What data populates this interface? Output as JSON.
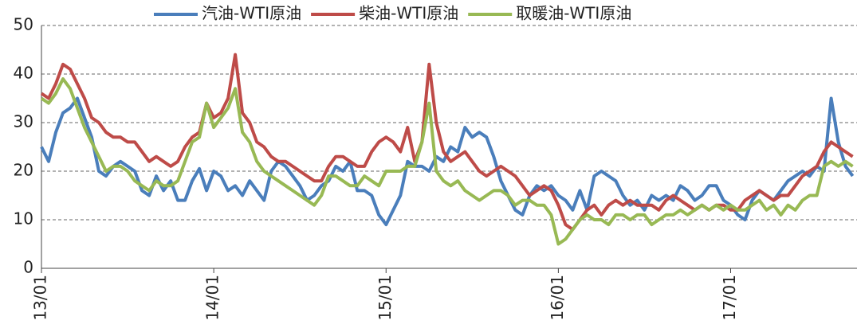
{
  "chart_data": {
    "type": "line",
    "x": [
      0,
      0.5,
      1,
      1.5,
      2,
      2.5,
      3,
      3.5,
      4,
      4.5,
      5,
      5.5,
      6,
      6.5,
      7,
      7.5,
      8,
      8.5,
      9,
      9.5,
      10,
      10.5,
      11,
      11.5,
      12,
      12.5,
      13,
      13.5,
      14,
      14.5,
      15,
      15.5,
      16,
      16.5,
      17,
      17.5,
      18,
      18.5,
      19,
      19.5,
      20,
      20.5,
      21,
      21.5,
      22,
      22.5,
      23,
      23.5,
      24,
      24.5,
      25,
      25.5,
      26,
      26.5,
      27,
      27.5,
      28,
      28.5,
      29,
      29.5,
      30,
      30.5,
      31,
      31.5,
      32,
      32.5,
      33,
      33.5,
      34,
      34.5,
      35,
      35.5,
      36,
      36.5,
      37,
      37.5,
      38,
      38.5,
      39,
      39.5,
      40,
      40.5,
      41,
      41.5,
      42,
      42.5,
      43,
      43.5,
      44,
      44.5,
      45,
      45.5,
      46,
      46.5,
      47,
      47.5,
      48,
      48.5,
      49,
      49.5,
      50,
      50.5,
      51,
      51.5,
      52,
      52.5,
      53,
      53.5,
      54,
      54.5,
      55,
      55.5,
      56,
      56.5
    ],
    "series": [
      {
        "name": "汽油-WTI原油",
        "color": "#4a7ebb",
        "values": [
          25,
          22,
          28,
          32,
          33,
          35,
          31,
          27,
          20,
          19,
          21,
          22,
          21,
          20,
          16,
          15,
          19,
          16,
          18,
          14,
          14,
          18,
          20.5,
          16,
          20,
          19,
          16,
          17,
          15,
          18,
          16,
          14,
          20,
          22,
          21,
          19,
          17,
          14,
          15,
          17,
          18,
          21,
          20,
          22,
          16,
          16,
          15,
          11,
          9,
          12,
          15,
          22,
          21,
          21,
          20,
          23,
          22,
          25,
          24,
          29,
          27,
          28,
          27,
          23,
          18,
          15,
          12,
          11,
          15,
          17,
          16,
          17,
          15,
          14,
          12,
          16,
          12,
          19,
          20,
          19,
          18,
          15,
          13,
          14,
          12,
          15,
          14,
          15,
          14,
          17,
          16,
          14,
          15,
          17,
          17,
          14,
          13,
          11,
          10,
          14,
          16,
          15,
          14,
          16,
          18,
          19,
          20,
          19,
          21,
          20,
          35,
          26,
          21,
          19
        ]
      },
      {
        "name": "柴油-WTI原油",
        "color": "#be4b48",
        "values": [
          36,
          35,
          38,
          42,
          41,
          38,
          35,
          31,
          30,
          28,
          27,
          27,
          26,
          26,
          24,
          22,
          23,
          22,
          21,
          22,
          25,
          27,
          28,
          34,
          31,
          32,
          35,
          44,
          32,
          30,
          26,
          25,
          23,
          22,
          22,
          21,
          20,
          19,
          18,
          18,
          21,
          23,
          23,
          22,
          21,
          21,
          24,
          26,
          27,
          26,
          24,
          29,
          22,
          26,
          42,
          30,
          24,
          22,
          23,
          24,
          22,
          20,
          19,
          20,
          21,
          20,
          19,
          17,
          15,
          16,
          17,
          16,
          13,
          9,
          8,
          10,
          12,
          13,
          11,
          13,
          14,
          13,
          14,
          13,
          13,
          13,
          12,
          14,
          15,
          14,
          13,
          12,
          13,
          12,
          13,
          13,
          12,
          12,
          14,
          15,
          16,
          15,
          14,
          15,
          15,
          17,
          19,
          20,
          21,
          24,
          26,
          25,
          24,
          23
        ]
      },
      {
        "name": "取暖油-WTI原油",
        "color": "#98b954",
        "values": [
          35,
          34,
          36,
          39,
          37,
          33,
          29,
          26,
          23,
          20,
          21,
          21,
          20,
          18,
          17,
          16,
          18,
          17,
          17,
          18,
          22,
          26,
          27,
          34,
          29,
          31,
          33,
          37,
          28,
          26,
          22,
          20,
          19,
          18,
          17,
          16,
          15,
          14,
          13,
          15,
          19,
          19,
          18,
          17,
          17,
          19,
          18,
          17,
          20,
          20,
          20,
          21,
          21,
          26,
          34,
          20,
          18,
          17,
          18,
          16,
          15,
          14,
          15,
          16,
          16,
          15,
          13,
          14,
          14,
          13,
          13,
          11,
          5,
          6,
          8,
          10,
          11,
          10,
          10,
          9,
          11,
          11,
          10,
          11,
          11,
          9,
          10,
          11,
          11,
          12,
          11,
          12,
          13,
          12,
          13,
          12,
          13,
          12,
          12,
          13,
          14,
          12,
          13,
          11,
          13,
          12,
          14,
          15,
          15,
          21,
          22,
          21,
          22,
          21
        ]
      }
    ],
    "xlim": [
      0,
      56.8
    ],
    "xticks": [
      {
        "value": 0,
        "label": "13/01"
      },
      {
        "value": 12,
        "label": "14/01"
      },
      {
        "value": 24,
        "label": "15/01"
      },
      {
        "value": 36,
        "label": "16/01"
      },
      {
        "value": 48,
        "label": "17/01"
      }
    ],
    "ylim": [
      0,
      50
    ],
    "yticks": [
      0,
      10,
      20,
      30,
      40,
      50
    ],
    "grid": true,
    "legend": "top"
  }
}
